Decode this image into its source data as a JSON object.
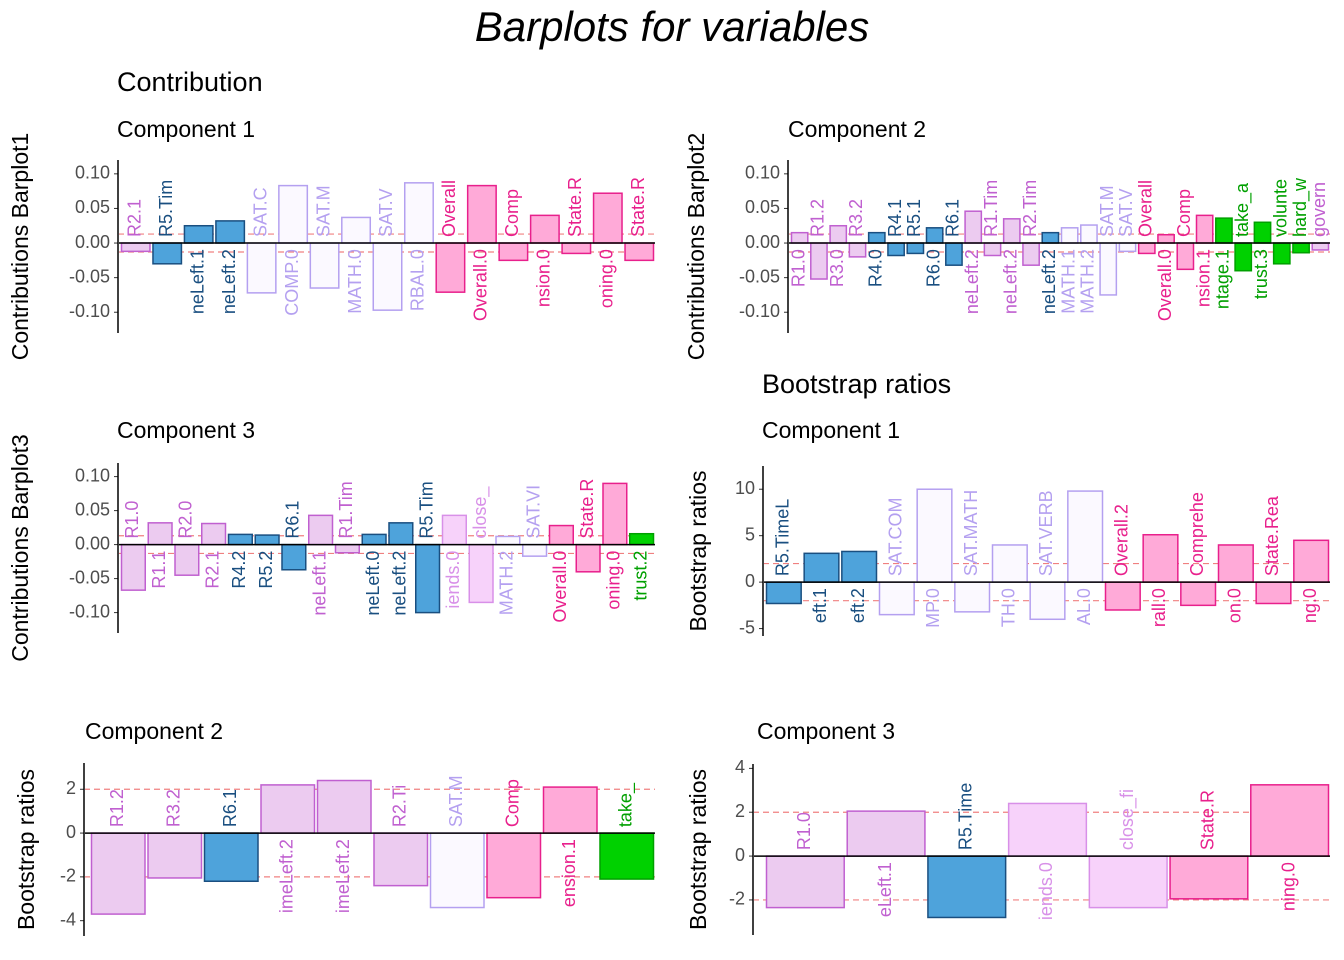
{
  "title": "Barplots for variables",
  "chart_data": [
    {
      "type": "bar",
      "title": "Contribution",
      "subtitle": "Component 1",
      "ylabel": "Contributions Barplot1",
      "categories": [
        "R2.1",
        "R5.Tim",
        "neLeft.1",
        "neLeft.2",
        "SAT.C",
        "COMP.0",
        "SAT.M",
        "MATH.0",
        "SAT.V",
        "RBAL.0",
        "Overall",
        "Overall.0",
        "Comp",
        "nsion.0",
        "State.R",
        "oning.0",
        "State.R"
      ],
      "values": [
        -0.012,
        -0.03,
        0.025,
        0.032,
        -0.072,
        0.083,
        -0.065,
        0.037,
        -0.097,
        0.087,
        -0.071,
        0.083,
        -0.025,
        0.04,
        -0.015,
        0.072,
        -0.025
      ],
      "colors": [
        "#eccbf0",
        "#4ea3db",
        "#4ea3db",
        "#4ea3db",
        "#fbf9ff",
        "#fbf9ff",
        "#fbf9ff",
        "#fbf9ff",
        "#fbf9ff",
        "#fbf9ff",
        "#ffaad8",
        "#ffaad8",
        "#ffaad8",
        "#ffaad8",
        "#ffaad8",
        "#ffaad8",
        "#ffaad8"
      ],
      "ylim": [
        -0.13,
        0.12
      ],
      "yticks": [
        {
          "value": 0.1,
          "label": "0.10"
        },
        0.05,
        {
          "value": 0,
          "label": "0.00"
        },
        -0.05,
        {
          "value": -0.1,
          "label": "-0.10"
        }
      ],
      "hlines": [
        0.013,
        -0.013
      ]
    },
    {
      "type": "bar",
      "subtitle": "Component 2",
      "ylabel": "Contributions Barplot2",
      "categories": [
        "R1.0",
        "R1.2",
        "R3.0",
        "R3.2",
        "R4.0",
        "R4.1",
        "R5.1",
        "R6.0",
        "R6.1",
        "neLeft.2",
        "R1.Tim",
        "neLeft.2",
        "R2.Tim",
        "neLeft.2",
        "MATH.1",
        "MATH.2",
        "SAT.M",
        "SAT.V",
        "Overall",
        "Overall.0",
        "Comp",
        "nsion.1",
        "ntage.1",
        "take_a",
        "trust.3",
        "volunte",
        "hard_w",
        "govern"
      ],
      "values": [
        0.015,
        -0.052,
        0.025,
        -0.02,
        0.015,
        -0.018,
        -0.015,
        0.022,
        -0.032,
        0.046,
        -0.018,
        0.035,
        -0.032,
        0.015,
        0.022,
        0.026,
        -0.075,
        -0.012,
        -0.015,
        0.012,
        -0.038,
        0.04,
        0.036,
        -0.04,
        0.03,
        -0.03,
        -0.014,
        -0.01
      ],
      "colors": [
        "#eccbf0",
        "#eccbf0",
        "#eccbf0",
        "#eccbf0",
        "#4ea3db",
        "#4ea3db",
        "#4ea3db",
        "#4ea3db",
        "#4ea3db",
        "#eccbf0",
        "#eccbf0",
        "#eccbf0",
        "#eccbf0",
        "#4ea3db",
        "#fbf9ff",
        "#fbf9ff",
        "#fbf9ff",
        "#fbf9ff",
        "#ffaad8",
        "#ffaad8",
        "#ffaad8",
        "#ffaad8",
        "#00d100",
        "#00d100",
        "#00d100",
        "#00d100",
        "#00d100",
        "#eccbf0"
      ],
      "ylim": [
        -0.13,
        0.12
      ],
      "yticks": [
        {
          "value": 0.1,
          "label": "0.10"
        },
        0.05,
        {
          "value": 0,
          "label": "0.00"
        },
        -0.05,
        {
          "value": -0.1,
          "label": "-0.10"
        }
      ],
      "hlines": [
        0.013,
        -0.013
      ]
    },
    {
      "type": "bar",
      "subtitle": "Component 3",
      "ylabel": "Contributions Barplot3",
      "categories": [
        "R1.0",
        "R1.1",
        "R2.0",
        "R2.1",
        "R4.2",
        "R5.2",
        "R6.1",
        "neLeft.1",
        "R1.Tim",
        "neLeft.0",
        "neLeft.2",
        "R5.Tim",
        "iends.0",
        "close_",
        "MATH.2",
        "SAT.VI",
        "Overall.0",
        "State.R",
        "oning.0",
        "trust.2"
      ],
      "values": [
        -0.067,
        0.032,
        -0.045,
        0.031,
        0.015,
        0.014,
        -0.037,
        0.043,
        -0.012,
        0.015,
        0.032,
        -0.1,
        0.043,
        -0.085,
        0.012,
        -0.017,
        0.028,
        -0.04,
        0.09,
        0.016
      ],
      "colors": [
        "#eccbf0",
        "#eccbf0",
        "#eccbf0",
        "#eccbf0",
        "#4ea3db",
        "#4ea3db",
        "#4ea3db",
        "#eccbf0",
        "#eccbf0",
        "#4ea3db",
        "#4ea3db",
        "#4ea3db",
        "#f7d2fa",
        "#f7d2fa",
        "#fbf9ff",
        "#fbf9ff",
        "#ffaad8",
        "#ffaad8",
        "#ffaad8",
        "#00d100"
      ],
      "ylim": [
        -0.13,
        0.12
      ],
      "yticks": [
        {
          "value": 0.1,
          "label": "0.10"
        },
        0.05,
        {
          "value": 0,
          "label": "0.00"
        },
        -0.05,
        {
          "value": -0.1,
          "label": "-0.10"
        }
      ],
      "hlines": [
        0.013,
        -0.013
      ]
    },
    {
      "type": "bar",
      "title": "Bootstrap ratios",
      "subtitle": "Component 1",
      "ylabel": "Bootstrap ratios",
      "categories": [
        "R5.TimeL",
        "eft.1",
        "eft.2",
        "SAT.COM",
        "MP.0",
        "SAT.MATH",
        "TH.0",
        "SAT.VERB",
        "AL.0",
        "Overall.2",
        "rall.0",
        "Comprehe",
        "on.0",
        "State.Rea",
        "ng.0"
      ],
      "values": [
        -2.3,
        3.1,
        3.3,
        -3.5,
        10,
        -3.2,
        4,
        -4,
        9.8,
        -3,
        5.1,
        -2.5,
        4,
        -2.3,
        4.5
      ],
      "colors": [
        "#4ea3db",
        "#4ea3db",
        "#4ea3db",
        "#fbf9ff",
        "#fbf9ff",
        "#fbf9ff",
        "#fbf9ff",
        "#fbf9ff",
        "#fbf9ff",
        "#ffaad8",
        "#ffaad8",
        "#ffaad8",
        "#ffaad8",
        "#ffaad8",
        "#ffaad8"
      ],
      "ylim": [
        -5.8,
        12.5
      ],
      "yticks": [
        10,
        5,
        0,
        -5
      ],
      "hlines": [
        2,
        -2
      ]
    },
    {
      "type": "bar",
      "subtitle": "Component 2",
      "ylabel": "Bootstrap ratios",
      "categories": [
        "R1.2",
        "R3.2",
        "R6.1",
        "imeLeft.2",
        "imeLeft.2",
        "R2.Ti",
        "SAT.M",
        "Comp",
        "ension.1",
        "take_"
      ],
      "values": [
        -3.7,
        -2.05,
        -2.2,
        2.2,
        2.4,
        -2.4,
        -3.4,
        -2.95,
        2.1,
        -2.1
      ],
      "colors": [
        "#eccbf0",
        "#eccbf0",
        "#4ea3db",
        "#eccbf0",
        "#eccbf0",
        "#eccbf0",
        "#fbf9ff",
        "#ffaad8",
        "#ffaad8",
        "#00d100"
      ],
      "ylim": [
        -4.7,
        3.2
      ],
      "yticks": [
        2,
        0,
        -2,
        -4
      ],
      "hlines": [
        2,
        -2
      ]
    },
    {
      "type": "bar",
      "subtitle": "Component 3",
      "ylabel": "Bootstrap ratios",
      "categories": [
        "R1.0",
        "eLeft.1",
        "R5.Time",
        "iends.0",
        "close_fi",
        "State.R",
        "ning.0"
      ],
      "values": [
        -2.35,
        2.05,
        -2.8,
        2.4,
        -2.35,
        -1.95,
        3.25
      ],
      "colors": [
        "#eccbf0",
        "#eccbf0",
        "#4ea3db",
        "#f7d2fa",
        "#f7d2fa",
        "#ffaad8",
        "#ffaad8"
      ],
      "ylim": [
        -3.6,
        4.2
      ],
      "yticks": [
        4,
        2,
        0,
        -2
      ],
      "hlines": [
        2,
        -2
      ]
    }
  ]
}
